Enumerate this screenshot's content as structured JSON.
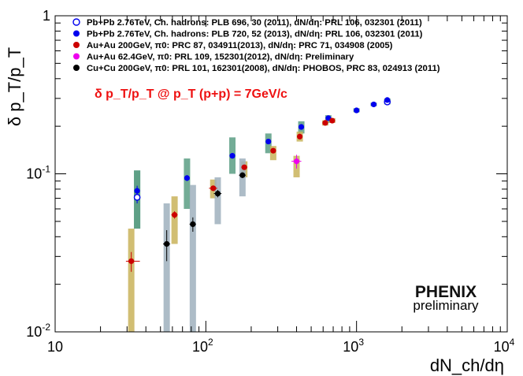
{
  "chart_data": {
    "type": "scatter",
    "x_scale": "log",
    "y_scale": "log",
    "xlim": [
      10,
      10000
    ],
    "ylim": [
      0.01,
      1
    ],
    "ylabel": "δ p_T/p_T",
    "xlabel": "dN_ch/dη",
    "x_ticks": [
      {
        "value": 10,
        "base": "10",
        "exp": ""
      },
      {
        "value": 100,
        "base": "10",
        "exp": "2"
      },
      {
        "value": 1000,
        "base": "10",
        "exp": "3"
      },
      {
        "value": 10000,
        "base": "10",
        "exp": "4"
      }
    ],
    "y_ticks": [
      {
        "value": 0.01,
        "base": "10",
        "exp": "-2"
      },
      {
        "value": 0.1,
        "base": "10",
        "exp": "-1"
      },
      {
        "value": 1,
        "base": "1",
        "exp": ""
      }
    ],
    "annotation": {
      "text": "δ p_T/p_T @ p_T (p+p) = 7GeV/c",
      "color": "#ee1111"
    },
    "logo": {
      "text": "PHENIX",
      "subtext": "preliminary"
    },
    "series": [
      {
        "name": "Pb+Pb 2.76TeV, Ch. hadrons: PLB 696, 30 (2011), dN/dη: PRL 106, 032301 (2011)",
        "color": "#0000ee",
        "marker": "open-circle",
        "sys_color": "#5b9e84",
        "points": [
          {
            "x": 35,
            "y": 0.071,
            "ey": 0.006,
            "sys_lo": 0.045,
            "sys_hi": 0.105
          },
          {
            "x": 1600,
            "y": 0.285,
            "ey": 0.008,
            "sys_lo": 0.275,
            "sys_hi": 0.295
          }
        ]
      },
      {
        "name": "Pb+Pb 2.76TeV, Ch. hadrons: PLB 720, 52 (2013), dN/dη: PRL 106, 032301 (2011)",
        "color": "#0000ee",
        "marker": "filled-circle",
        "sys_color": "#5b9e84",
        "points": [
          {
            "x": 35,
            "y": 0.078,
            "ey": 0.006,
            "sys_lo": 0.045,
            "sys_hi": 0.105
          },
          {
            "x": 75,
            "y": 0.094,
            "ey": 0.004,
            "sys_lo": 0.06,
            "sys_hi": 0.125
          },
          {
            "x": 150,
            "y": 0.13,
            "ey": 0.005,
            "sys_lo": 0.1,
            "sys_hi": 0.17
          },
          {
            "x": 260,
            "y": 0.16,
            "ey": 0.006,
            "sys_lo": 0.135,
            "sys_hi": 0.18
          },
          {
            "x": 430,
            "y": 0.198,
            "ey": 0.007,
            "sys_lo": 0.18,
            "sys_hi": 0.215
          },
          {
            "x": 650,
            "y": 0.225,
            "ey": 0.007,
            "sys_lo": 0.21,
            "sys_hi": 0.235
          },
          {
            "x": 1000,
            "y": 0.252,
            "ey": 0.007,
            "sys_lo": 0.245,
            "sys_hi": 0.26
          },
          {
            "x": 1300,
            "y": 0.275,
            "ey": 0.007,
            "sys_lo": 0.268,
            "sys_hi": 0.282
          },
          {
            "x": 1600,
            "y": 0.293,
            "ey": 0.008,
            "sys_lo": 0.285,
            "sys_hi": 0.3
          }
        ]
      },
      {
        "name": "Au+Au 200GeV, π0: PRC 87, 034911(2013), dN/dη: PRC 71, 034908 (2005)",
        "color": "#cc0000",
        "marker": "filled-circle",
        "sys_color": "#c9b35a",
        "points": [
          {
            "x": 32,
            "y": 0.028,
            "ey": 0.004,
            "ex_lo": 2.5,
            "ex_hi": 4.5,
            "sys_lo": 0.01,
            "sys_hi": 0.045
          },
          {
            "x": 62,
            "y": 0.055,
            "ey": 0.003,
            "ex_lo": 3,
            "ex_hi": 3,
            "sys_lo": 0.036,
            "sys_hi": 0.072
          },
          {
            "x": 112,
            "y": 0.081,
            "ey": 0.003,
            "ex_lo": 7,
            "ex_hi": 7,
            "sys_lo": 0.07,
            "sys_hi": 0.092
          },
          {
            "x": 180,
            "y": 0.11,
            "ey": 0.003,
            "ex_lo": 8,
            "ex_hi": 8,
            "sys_lo": 0.095,
            "sys_hi": 0.12
          },
          {
            "x": 280,
            "y": 0.14,
            "ey": 0.004,
            "ex_lo": 10,
            "ex_hi": 10,
            "sys_lo": 0.122,
            "sys_hi": 0.15
          },
          {
            "x": 420,
            "y": 0.172,
            "ey": 0.004,
            "ex_lo": 15,
            "ex_hi": 15,
            "sys_lo": 0.16,
            "sys_hi": 0.185
          },
          {
            "x": 620,
            "y": 0.21,
            "ey": 0.005,
            "ex_lo": 20,
            "ex_hi": 20,
            "sys_lo": 0.202,
            "sys_hi": 0.218
          },
          {
            "x": 690,
            "y": 0.217,
            "ey": 0.005,
            "ex_lo": 20,
            "ex_hi": 20,
            "sys_lo": 0.21,
            "sys_hi": 0.225
          }
        ]
      },
      {
        "name": "Au+Au 62.4GeV, π0: PRL 109, 152301(2012), dN/dη: Preliminary",
        "color": "#ee00ee",
        "marker": "filled-circle",
        "sys_color": "#c9b35a",
        "points": [
          {
            "x": 400,
            "y": 0.12,
            "ey": 0.012,
            "ex_lo": 30,
            "ex_hi": 30,
            "sys_lo": 0.095,
            "sys_hi": 0.13
          }
        ]
      },
      {
        "name": "Cu+Cu 200GeV, π0: PRL 101, 162301(2008), dN/dη: PHOBOS, PRC 83, 024913 (2011)",
        "color": "#000000",
        "marker": "filled-circle",
        "sys_color": "#9fb0bd",
        "points": [
          {
            "x": 55,
            "y": 0.036,
            "ey": 0.008,
            "ex_lo": 3,
            "ex_hi": 3,
            "sys_lo": 0.01,
            "sys_hi": 0.065
          },
          {
            "x": 82,
            "y": 0.048,
            "ey": 0.005,
            "ex_lo": 4,
            "ex_hi": 4,
            "sys_lo": 0.01,
            "sys_hi": 0.085
          },
          {
            "x": 120,
            "y": 0.075,
            "ey": 0.004,
            "ex_lo": 7,
            "ex_hi": 7,
            "sys_lo": 0.048,
            "sys_hi": 0.095
          },
          {
            "x": 175,
            "y": 0.098,
            "ey": 0.004,
            "ex_lo": 9,
            "ex_hi": 9,
            "sys_lo": 0.072,
            "sys_hi": 0.125
          }
        ]
      }
    ]
  }
}
